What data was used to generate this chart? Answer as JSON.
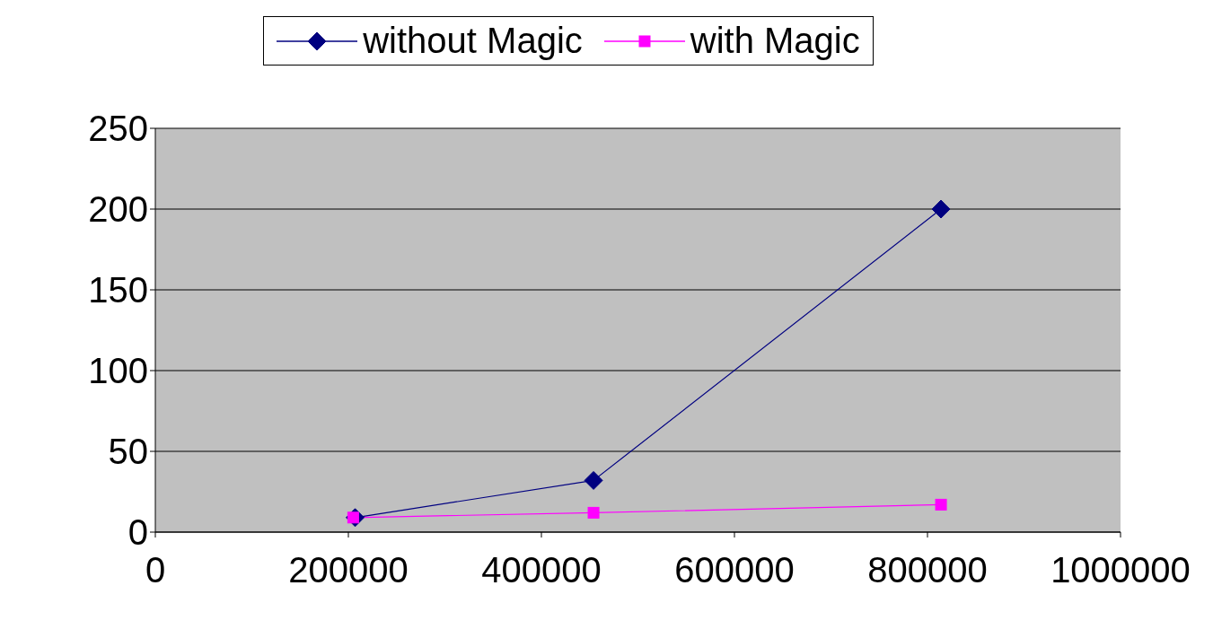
{
  "chart_data": {
    "type": "line",
    "series": [
      {
        "name": "without Magic",
        "color": "#000080",
        "x": [
          207000,
          454000,
          814000
        ],
        "values": [
          9,
          32,
          200
        ],
        "marker": "diamond"
      },
      {
        "name": "with Magic",
        "color": "#ff00ff",
        "x": [
          205000,
          454000,
          814000
        ],
        "values": [
          9,
          12,
          17
        ],
        "marker": "square"
      }
    ],
    "xlim": [
      0,
      1000000
    ],
    "xticks": [
      0,
      200000,
      400000,
      600000,
      800000,
      1000000
    ],
    "ylim": [
      0,
      250
    ],
    "yticks": [
      0,
      50,
      100,
      150,
      200,
      250
    ],
    "grid": "y",
    "legend": "top",
    "line_style": "solid"
  }
}
